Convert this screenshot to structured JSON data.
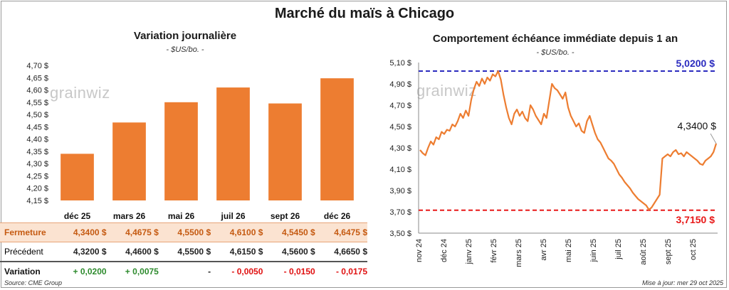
{
  "title": "Marché du maïs à Chicago",
  "left": {
    "subtitle": "Variation journalière",
    "unit": "- $US/bo. -",
    "watermark": "grainwiz",
    "chart_data": {
      "type": "bar",
      "categories": [
        "déc 25",
        "mars 26",
        "mai 26",
        "juil 26",
        "sept 26",
        "déc 26"
      ],
      "values": [
        4.34,
        4.4675,
        4.55,
        4.61,
        4.545,
        4.6475
      ],
      "ylim": [
        4.15,
        4.7
      ],
      "yticks": [
        "4,15 $",
        "4,20 $",
        "4,25 $",
        "4,30 $",
        "4,35 $",
        "4,40 $",
        "4,45 $",
        "4,50 $",
        "4,55 $",
        "4,60 $",
        "4,65 $",
        "4,70 $"
      ],
      "bar_color": "#ed7d31",
      "title": "Variation journalière",
      "ylabel": "- $US/bo. -"
    }
  },
  "table": {
    "rows": [
      {
        "label": "Fermeture",
        "cells": [
          "4,3400  $",
          "4,4675  $",
          "4,5500  $",
          "4,6100  $",
          "4,5450  $",
          "4,6475  $"
        ]
      },
      {
        "label": "Précédent",
        "cells": [
          "4,3200  $",
          "4,4600  $",
          "4,5500  $",
          "4,6150  $",
          "4,5600  $",
          "4,6650  $"
        ]
      },
      {
        "label": "Variation",
        "cells": [
          "+ 0,0200",
          "+ 0,0075",
          "-",
          "- 0,0050",
          "- 0,0150",
          "- 0,0175"
        ]
      }
    ]
  },
  "right": {
    "subtitle": "Comportement  échéance immédiate depuis 1 an",
    "unit": "- $US/bo. -",
    "watermark": "grainwiz",
    "chart_data": {
      "type": "line",
      "ylim": [
        3.5,
        5.1
      ],
      "yticks": [
        "3,50 $",
        "3,70 $",
        "3,90 $",
        "4,10 $",
        "4,30 $",
        "4,50 $",
        "4,70 $",
        "4,90 $",
        "5,10 $"
      ],
      "xticks": [
        "nov 24",
        "déc 24",
        "janv 25",
        "févr 25",
        "mars 25",
        "avr 25",
        "mai 25",
        "juin 25",
        "juil 25",
        "août 25",
        "sept 25",
        "oct 25"
      ],
      "series_color": "#ed7d31",
      "high": {
        "value": 5.02,
        "label": "5,0200 $",
        "color": "#2b2bbf"
      },
      "low": {
        "value": 3.715,
        "label": "3,7150 $",
        "color": "#e81818"
      },
      "last": {
        "value": 4.34,
        "label": "4,3400 $"
      },
      "y": [
        4.28,
        4.25,
        4.23,
        4.3,
        4.36,
        4.33,
        4.4,
        4.38,
        4.45,
        4.43,
        4.47,
        4.46,
        4.52,
        4.5,
        4.55,
        4.62,
        4.58,
        4.65,
        4.6,
        4.75,
        4.85,
        4.92,
        4.88,
        4.95,
        4.9,
        4.96,
        4.93,
        4.99,
        4.97,
        5.02,
        4.94,
        4.8,
        4.68,
        4.58,
        4.52,
        4.62,
        4.66,
        4.6,
        4.64,
        4.58,
        4.55,
        4.7,
        4.66,
        4.6,
        4.56,
        4.52,
        4.62,
        4.58,
        4.74,
        4.9,
        4.86,
        4.84,
        4.8,
        4.76,
        4.82,
        4.68,
        4.6,
        4.55,
        4.5,
        4.53,
        4.46,
        4.44,
        4.55,
        4.6,
        4.52,
        4.44,
        4.38,
        4.35,
        4.3,
        4.25,
        4.2,
        4.18,
        4.15,
        4.1,
        4.05,
        4.02,
        3.98,
        3.95,
        3.92,
        3.88,
        3.85,
        3.82,
        3.8,
        3.78,
        3.76,
        3.72,
        3.74,
        3.78,
        3.82,
        3.86,
        4.2,
        4.22,
        4.24,
        4.22,
        4.26,
        4.28,
        4.24,
        4.25,
        4.22,
        4.26,
        4.24,
        4.22,
        4.2,
        4.18,
        4.15,
        4.14,
        4.18,
        4.2,
        4.22,
        4.26,
        4.34
      ]
    }
  },
  "footer": {
    "source": "Source: CME Group",
    "update": "Mise à jour: mer 29 oct 2025"
  }
}
